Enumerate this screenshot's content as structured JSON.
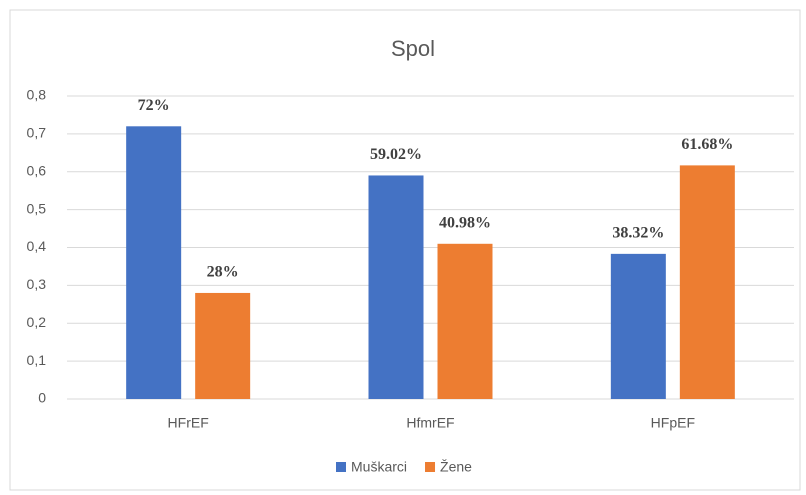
{
  "chart_data": {
    "type": "bar",
    "title": "Spol",
    "categories": [
      "HFrEF",
      "HfmrEF",
      "HFpEF"
    ],
    "series": [
      {
        "name": "Muškarci",
        "color": "#4472c4",
        "values": [
          0.72,
          0.5902,
          0.3832
        ],
        "value_labels": [
          "72%",
          "59.02%",
          "38.32%"
        ]
      },
      {
        "name": "Žene",
        "color": "#ed7d31",
        "values": [
          0.28,
          0.4098,
          0.6168
        ],
        "value_labels": [
          "28%",
          "40.98%",
          "61.68%"
        ]
      }
    ],
    "ylim": [
      0,
      0.8
    ],
    "yticks": [
      0,
      {
        "value": 0.1,
        "label": "0,1"
      },
      {
        "value": 0.2,
        "label": "0,2"
      },
      {
        "value": 0.3,
        "label": "0,3"
      },
      {
        "value": 0.4,
        "label": "0,4"
      },
      {
        "value": 0.5,
        "label": "0,5"
      },
      {
        "value": 0.6,
        "label": "0,6"
      },
      {
        "value": 0.7,
        "label": "0,7"
      },
      {
        "value": 0.8,
        "label": "0,8"
      }
    ],
    "grid": true,
    "legend": "bottom"
  }
}
